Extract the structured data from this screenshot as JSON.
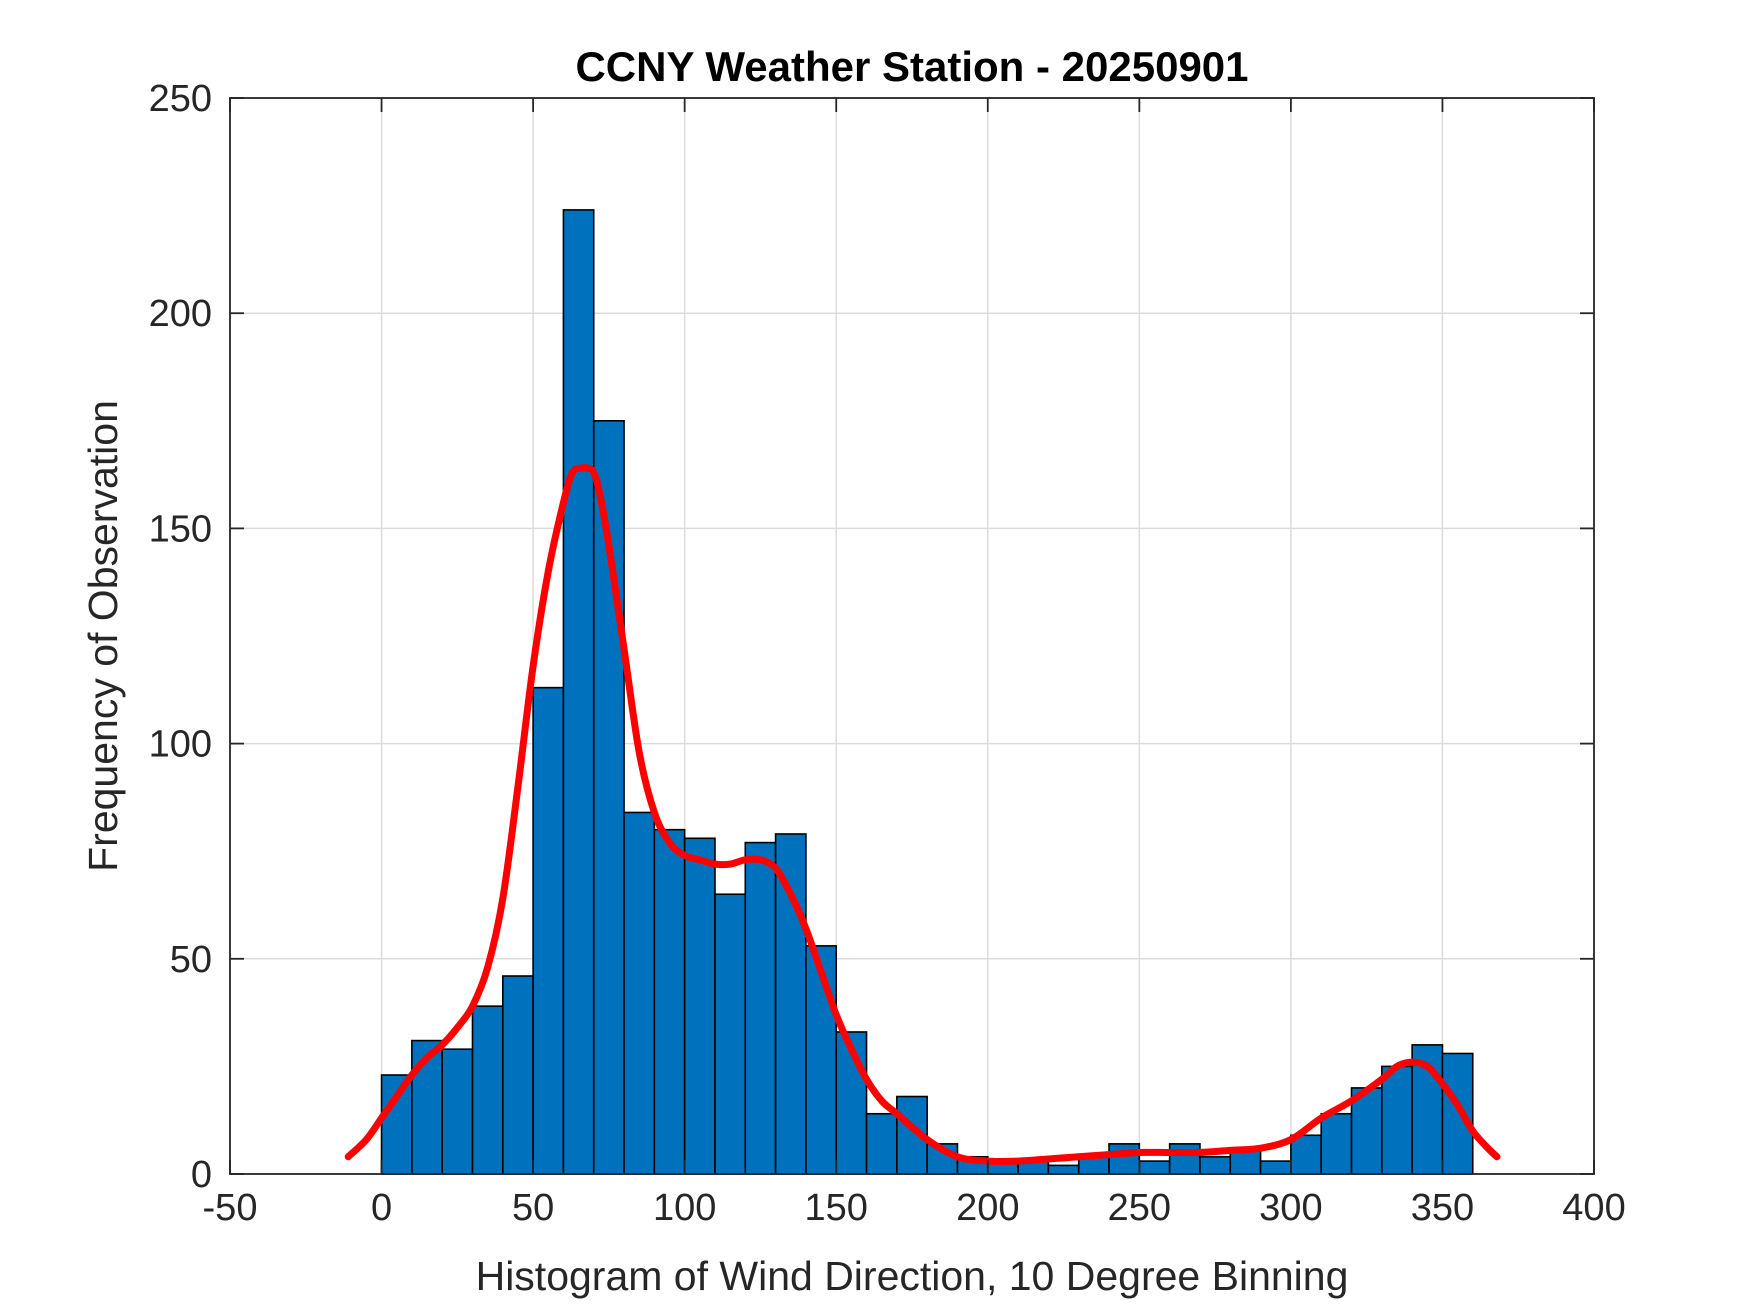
{
  "chart_data": {
    "type": "bar",
    "title": "CCNY Weather Station - 20250901",
    "xlabel": "Histogram of Wind Direction, 10 Degree Binning",
    "ylabel": "Frequency of Observation",
    "xlim": [
      -50,
      400
    ],
    "ylim": [
      0,
      250
    ],
    "xticks": [
      -50,
      0,
      50,
      100,
      150,
      200,
      250,
      300,
      350,
      400
    ],
    "yticks": [
      0,
      50,
      100,
      150,
      200,
      250
    ],
    "grid": true,
    "bin_width": 10,
    "bins": [
      {
        "x0": 0,
        "x1": 10,
        "value": 23
      },
      {
        "x0": 10,
        "x1": 20,
        "value": 31
      },
      {
        "x0": 20,
        "x1": 30,
        "value": 29
      },
      {
        "x0": 30,
        "x1": 40,
        "value": 39
      },
      {
        "x0": 40,
        "x1": 50,
        "value": 46
      },
      {
        "x0": 50,
        "x1": 60,
        "value": 113
      },
      {
        "x0": 60,
        "x1": 70,
        "value": 224
      },
      {
        "x0": 70,
        "x1": 80,
        "value": 175
      },
      {
        "x0": 80,
        "x1": 90,
        "value": 84
      },
      {
        "x0": 90,
        "x1": 100,
        "value": 80
      },
      {
        "x0": 100,
        "x1": 110,
        "value": 78
      },
      {
        "x0": 110,
        "x1": 120,
        "value": 65
      },
      {
        "x0": 120,
        "x1": 130,
        "value": 77
      },
      {
        "x0": 130,
        "x1": 140,
        "value": 79
      },
      {
        "x0": 140,
        "x1": 150,
        "value": 53
      },
      {
        "x0": 150,
        "x1": 160,
        "value": 33
      },
      {
        "x0": 160,
        "x1": 170,
        "value": 14
      },
      {
        "x0": 170,
        "x1": 180,
        "value": 18
      },
      {
        "x0": 180,
        "x1": 190,
        "value": 7
      },
      {
        "x0": 190,
        "x1": 200,
        "value": 4
      },
      {
        "x0": 200,
        "x1": 210,
        "value": 3
      },
      {
        "x0": 210,
        "x1": 220,
        "value": 3
      },
      {
        "x0": 220,
        "x1": 230,
        "value": 2
      },
      {
        "x0": 230,
        "x1": 240,
        "value": 4
      },
      {
        "x0": 240,
        "x1": 250,
        "value": 7
      },
      {
        "x0": 250,
        "x1": 260,
        "value": 3
      },
      {
        "x0": 260,
        "x1": 270,
        "value": 7
      },
      {
        "x0": 270,
        "x1": 280,
        "value": 4
      },
      {
        "x0": 280,
        "x1": 290,
        "value": 6
      },
      {
        "x0": 290,
        "x1": 300,
        "value": 3
      },
      {
        "x0": 300,
        "x1": 310,
        "value": 9
      },
      {
        "x0": 310,
        "x1": 320,
        "value": 14
      },
      {
        "x0": 320,
        "x1": 330,
        "value": 20
      },
      {
        "x0": 330,
        "x1": 340,
        "value": 25
      },
      {
        "x0": 340,
        "x1": 350,
        "value": 30
      },
      {
        "x0": 350,
        "x1": 360,
        "value": 28
      }
    ],
    "series": [
      {
        "name": "histogram",
        "type": "bar",
        "color": "#0072BD"
      },
      {
        "name": "density-fit",
        "type": "line",
        "color": "#FF0000",
        "x": [
          -11,
          -5,
          0,
          5,
          10,
          15,
          20,
          25,
          30,
          35,
          40,
          45,
          50,
          55,
          60,
          63,
          66,
          68,
          70,
          72,
          75,
          80,
          85,
          90,
          95,
          100,
          105,
          110,
          115,
          120,
          125,
          130,
          135,
          140,
          145,
          150,
          155,
          160,
          165,
          170,
          180,
          190,
          200,
          210,
          220,
          230,
          240,
          250,
          260,
          270,
          280,
          290,
          300,
          310,
          320,
          330,
          335,
          340,
          345,
          350,
          355,
          360,
          365,
          368
        ],
        "y": [
          4,
          8,
          13,
          18,
          23,
          27,
          30,
          34,
          39,
          48,
          64,
          90,
          118,
          140,
          156,
          163,
          164,
          164,
          163,
          158,
          146,
          122,
          98,
          84,
          77,
          74,
          73,
          72,
          72,
          73,
          73,
          71,
          65,
          57,
          47,
          37,
          29,
          22,
          17,
          14,
          8,
          4,
          3,
          3,
          3.5,
          4,
          4.5,
          5,
          5,
          5,
          5.5,
          6,
          8,
          13,
          17,
          22,
          25,
          26,
          25,
          21,
          16,
          10,
          6,
          4
        ]
      }
    ]
  }
}
